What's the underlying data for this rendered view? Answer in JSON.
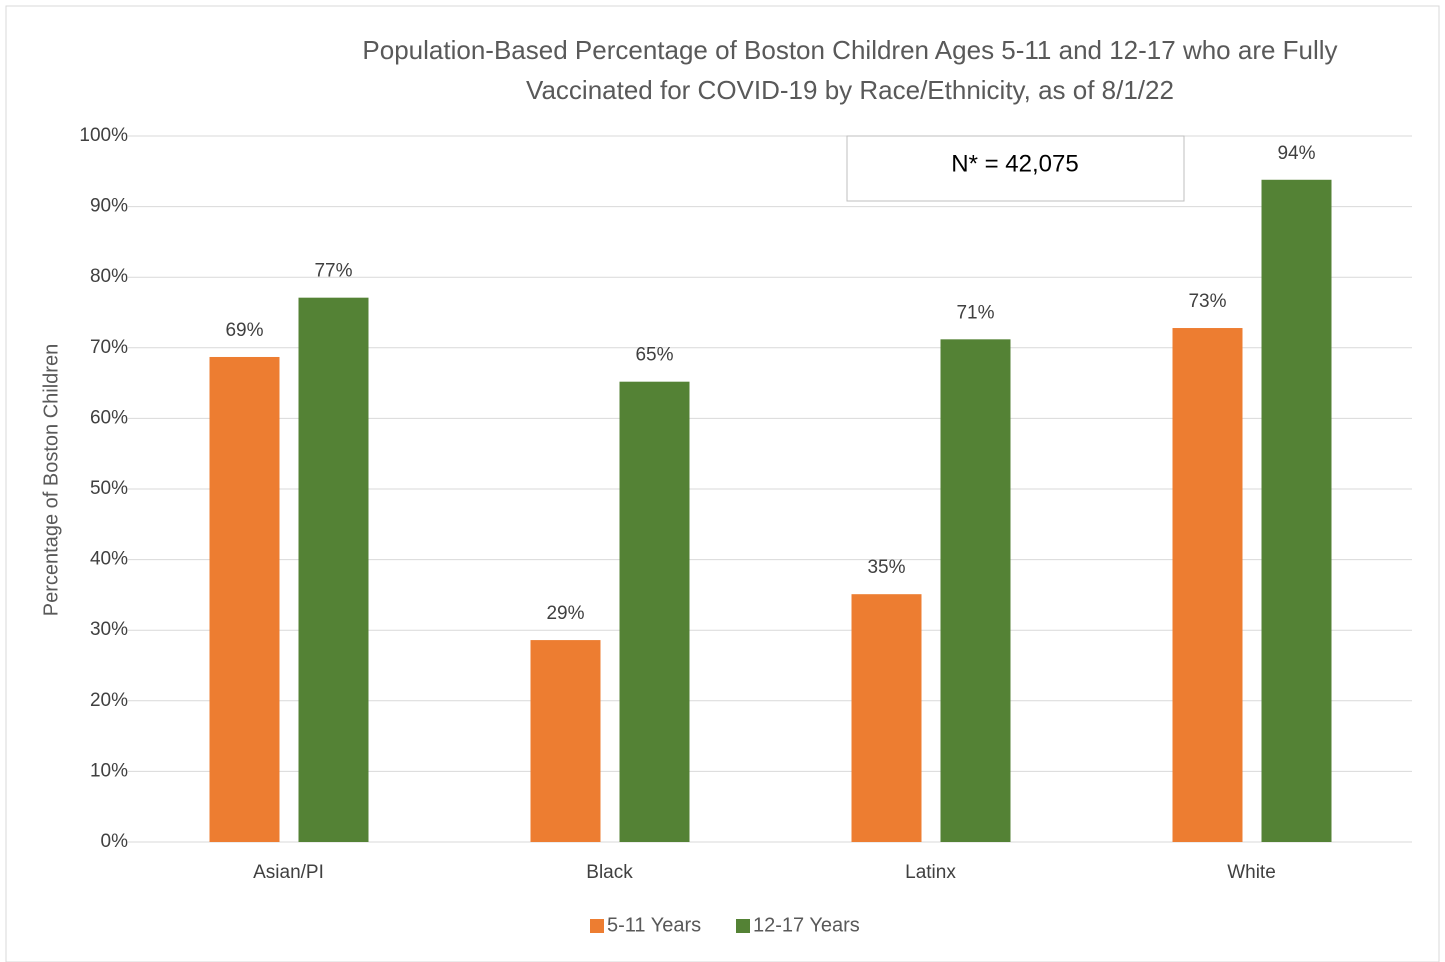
{
  "chart_data": {
    "type": "bar",
    "title": "Population-Based Percentage of Boston Children Ages 5-11 and 12-17 who are Fully Vaccinated for COVID-19 by Race/Ethnicity, as of 8/1/22",
    "annotation": "N* = 42,075",
    "y_label": "Percentage of Boston Children",
    "categories": [
      "Asian/PI",
      "Black",
      "Latinx",
      "White"
    ],
    "series": [
      {
        "name": "5-11 Years",
        "color": "#ed7d31",
        "values": [
          68.7,
          28.6,
          35.1,
          72.8
        ],
        "value_labels": [
          "69%",
          "29%",
          "35%",
          "73%"
        ]
      },
      {
        "name": "12-17 Years",
        "color": "#548235",
        "values": [
          77.1,
          65.2,
          71.2,
          93.8
        ],
        "value_labels": [
          "77%",
          "65%",
          "71%",
          "94%"
        ]
      }
    ],
    "ylim": [
      0,
      100
    ],
    "yticks": [
      {
        "value": 0,
        "label": "0%"
      },
      {
        "value": 10,
        "label": "10%"
      },
      {
        "value": 20,
        "label": "20%"
      },
      {
        "value": 30,
        "label": "30%"
      },
      {
        "value": 40,
        "label": "40%"
      },
      {
        "value": 50,
        "label": "50%"
      },
      {
        "value": 60,
        "label": "60%"
      },
      {
        "value": 70,
        "label": "70%"
      },
      {
        "value": 80,
        "label": "80%"
      },
      {
        "value": 90,
        "label": "90%"
      },
      {
        "value": 100,
        "label": "100%"
      }
    ],
    "grid": true,
    "legend": "bottom"
  }
}
